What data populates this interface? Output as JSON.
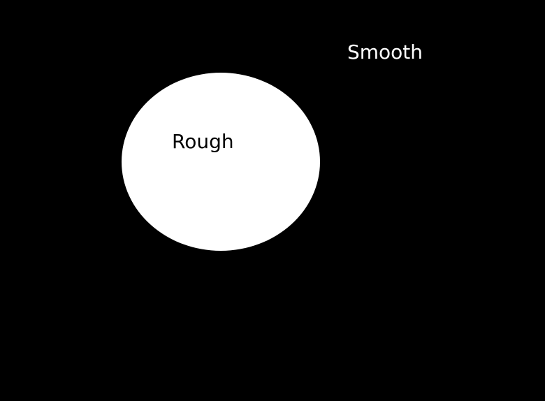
{
  "diagram": {
    "background_color": "#000000",
    "circle_color": "#ffffff",
    "outer_region": {
      "label": "Smooth",
      "text_color": "#ffffff"
    },
    "inner_region": {
      "label": "Rough",
      "text_color": "#000000"
    }
  }
}
